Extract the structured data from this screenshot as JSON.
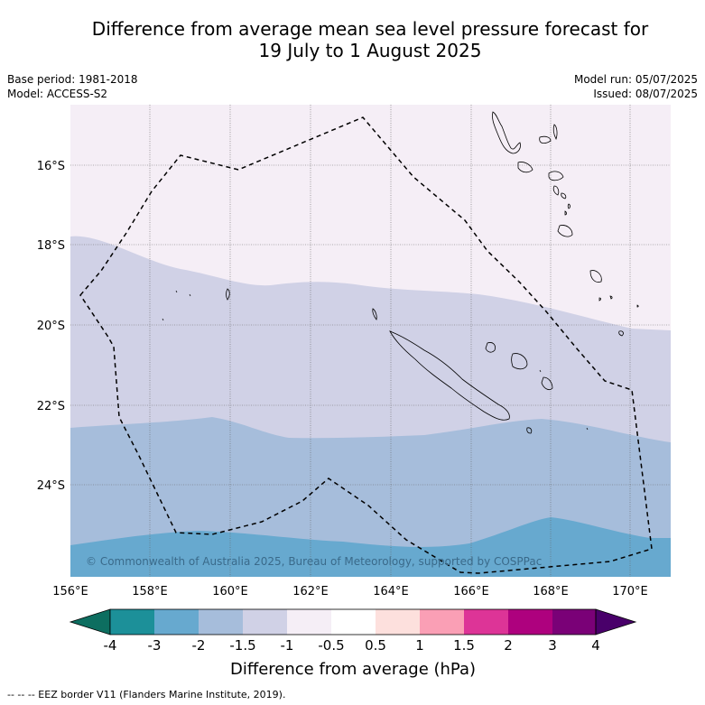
{
  "title": {
    "line1": "Difference from average mean sea level pressure forecast for",
    "line2": "19 July to 1 August 2025"
  },
  "meta": {
    "base_period": "Base period: 1981-2018",
    "model": "Model: ACCESS-S2",
    "model_run": "Model run: 05/07/2025",
    "issued": "Issued: 08/07/2025"
  },
  "map": {
    "lat_labels": [
      "16°S",
      "18°S",
      "20°S",
      "22°S",
      "24°S"
    ],
    "lon_labels": [
      "156°E",
      "158°E",
      "160°E",
      "162°E",
      "164°E",
      "166°E",
      "168°E",
      "170°E"
    ],
    "copyright": "© Commonwealth of Australia 2025, Bureau of Meteorology, supported by COSPPac",
    "band_colors": {
      "minus_1_to_minus_0_5": "#f5eef6",
      "minus_1_5_to_minus_1": "#d0d1e6",
      "minus_2_to_minus_1_5": "#a6bddb",
      "minus_3_to_minus_2": "#67a9cf"
    }
  },
  "colorbar": {
    "tick_labels": [
      "-4",
      "-3",
      "-2",
      "-1.5",
      "-1",
      "-0.5",
      "0.5",
      "1",
      "1.5",
      "2",
      "3",
      "4"
    ],
    "colors": [
      "#0d6e60",
      "#1c9099",
      "#67a9cf",
      "#a6bddb",
      "#d0d1e6",
      "#f5eef6",
      "#ffffff",
      "#fde0dd",
      "#fa9fb5",
      "#dd3497",
      "#ae017e",
      "#7a0177",
      "#49006a"
    ],
    "label": "Difference from average (hPa)"
  },
  "footer": {
    "legend": "--  --  -- EEZ border V11 (Flanders Marine Institute, 2019)."
  }
}
